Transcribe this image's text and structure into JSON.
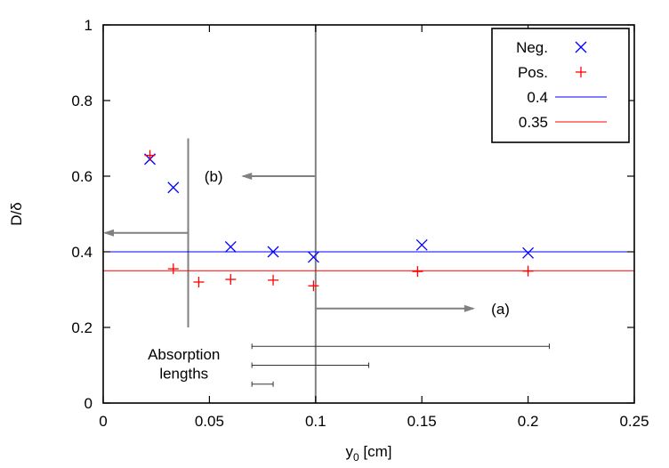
{
  "chart_data": {
    "type": "scatter",
    "xlabel_main": "y",
    "xlabel_sub": "0",
    "xlabel_unit": " [cm]",
    "ylabel": "D/δ",
    "xlim": [
      0,
      0.25
    ],
    "ylim": [
      0,
      1
    ],
    "x_ticks": [
      0,
      0.05,
      0.1,
      0.15,
      0.2,
      0.25
    ],
    "x_tick_labels": [
      "0",
      "0.05",
      "0.1",
      "0.15",
      "0.2",
      "0.25"
    ],
    "y_ticks": [
      0,
      0.2,
      0.4,
      0.6,
      0.8,
      1
    ],
    "y_tick_labels": [
      "0",
      "0.2",
      "0.4",
      "0.6",
      "0.8",
      "1"
    ],
    "series": [
      {
        "name": "Neg.",
        "marker": "x",
        "color": "#0000ff",
        "x": [
          0.022,
          0.033,
          0.06,
          0.08,
          0.099,
          0.15,
          0.2
        ],
        "y": [
          0.645,
          0.57,
          0.413,
          0.4,
          0.386,
          0.418,
          0.397
        ]
      },
      {
        "name": "Pos.",
        "marker": "+",
        "color": "#ff0000",
        "x": [
          0.022,
          0.033,
          0.045,
          0.06,
          0.08,
          0.099,
          0.148,
          0.2
        ],
        "y": [
          0.655,
          0.355,
          0.32,
          0.327,
          0.325,
          0.31,
          0.348,
          0.349
        ]
      }
    ],
    "hlines": [
      {
        "name": "0.4",
        "y": 0.4,
        "color": "#0000ff"
      },
      {
        "name": "0.35",
        "y": 0.35,
        "color": "#ff0000"
      }
    ],
    "legend": {
      "position": "top-right",
      "entries": [
        {
          "label": "Neg.",
          "kind": "x",
          "color": "#0000ff"
        },
        {
          "label": "Pos.",
          "kind": "+",
          "color": "#ff0000"
        },
        {
          "label": "0.4",
          "kind": "line",
          "color": "#0000ff"
        },
        {
          "label": "0.35",
          "kind": "line",
          "color": "#ff0000"
        }
      ]
    },
    "annotations": {
      "color": "#808080",
      "vline_main": {
        "x": 0.1,
        "y0": 0,
        "y1": 1
      },
      "vline_b": {
        "x": 0.04,
        "y0": 0.2,
        "y1": 0.7
      },
      "arrow_b": {
        "x_from": 0.1,
        "x_to": 0.065,
        "y": 0.6,
        "label": "(b)",
        "label_x": 0.052
      },
      "arrow_left": {
        "x_from": 0.04,
        "x_to": 0.0,
        "y": 0.45
      },
      "arrow_a": {
        "x_from": 0.1,
        "x_to": 0.175,
        "y": 0.25,
        "label": "(a)",
        "label_x": 0.187
      },
      "absorption_lengths": [
        {
          "x_start": 0.07,
          "x_end": 0.21,
          "y": 0.15
        },
        {
          "x_start": 0.07,
          "x_end": 0.125,
          "y": 0.1
        },
        {
          "x_start": 0.07,
          "x_end": 0.08,
          "y": 0.05
        }
      ],
      "absorption_label_line1": "Absorption",
      "absorption_label_line2": "lengths",
      "absorption_label_x": 0.038,
      "absorption_label_y1": 0.115,
      "absorption_label_y2": 0.065
    }
  }
}
